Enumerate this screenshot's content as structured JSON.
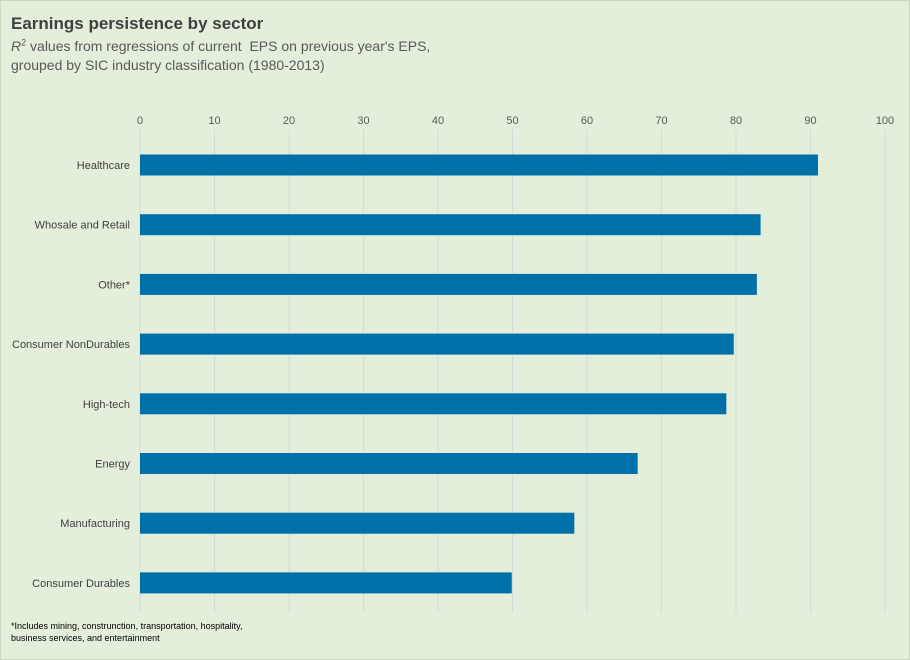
{
  "chart_data": {
    "type": "bar",
    "orientation": "horizontal",
    "title": "Earnings persistence by sector",
    "subtitle": {
      "r_symbol": "R",
      "r_superscript": "2",
      "line1_rest": " values from regressions of current  EPS on previous year's EPS,",
      "line2": "grouped by SIC industry classification (1980-2013)"
    },
    "categories": [
      "Healthcare",
      "Whosale and Retail",
      "Other*",
      "Consumer NonDurables",
      "High-tech",
      "Energy",
      "Manufacturing",
      "Consumer Durables"
    ],
    "values": [
      91,
      83.3,
      82.8,
      79.7,
      78.7,
      66.8,
      58.3,
      49.9
    ],
    "xlim": [
      0,
      100
    ],
    "x_ticks": [
      0,
      10,
      20,
      30,
      40,
      50,
      60,
      70,
      80,
      90,
      100
    ],
    "x_axis_position": "top",
    "grid": true,
    "legend": "none",
    "bar_color": "#0070a8",
    "grid_color": "#d9d9d9",
    "background_color": "#e3efdb",
    "footnote": {
      "line1": "*Includes mining, construnction, transportation, hospitality,",
      "line2": "business services, and entertainment"
    }
  }
}
